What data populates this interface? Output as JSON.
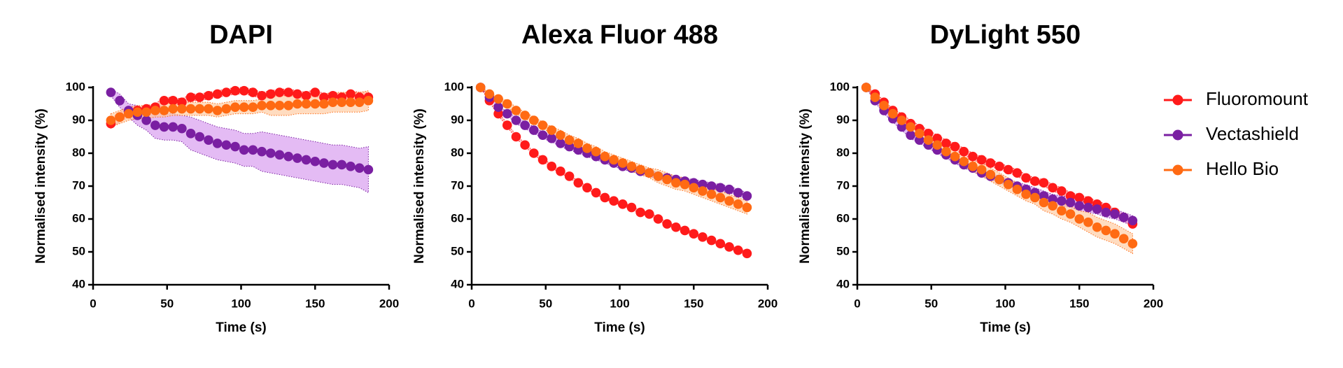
{
  "chart_data": [
    {
      "type": "scatter",
      "title": "DAPI",
      "x_label": "Time (s)",
      "y_label": "Normalised intensity (%)",
      "xlim": [
        0,
        200
      ],
      "xticks": [
        0,
        50,
        100,
        150,
        200
      ],
      "ylim": [
        40,
        100
      ],
      "yticks": [
        40,
        50,
        60,
        70,
        80,
        90,
        100
      ],
      "legend": "right",
      "x": [
        12,
        18,
        24,
        30,
        36,
        42,
        48,
        54,
        60,
        66,
        72,
        78,
        84,
        90,
        96,
        102,
        108,
        114,
        120,
        126,
        132,
        138,
        144,
        150,
        156,
        162,
        168,
        174,
        180,
        186
      ],
      "series": [
        {
          "name": "Fluoromount",
          "color": "#ff1a1a",
          "band_color": "#ffaaaa",
          "values": [
            89,
            91,
            92.5,
            93,
            93.5,
            94,
            96,
            96,
            95.5,
            97,
            97,
            97.5,
            98,
            98.5,
            99,
            99,
            98.5,
            97.5,
            98,
            98.5,
            98.5,
            98,
            97.5,
            98.5,
            97,
            97.5,
            97,
            98,
            97,
            97
          ],
          "error": [
            1.5,
            1.5,
            1.5,
            1,
            1,
            1,
            1,
            1,
            1,
            1,
            1,
            1,
            1,
            1,
            1,
            1,
            1,
            1,
            1,
            1,
            1,
            1,
            1,
            1,
            1,
            1,
            1,
            1,
            1.5,
            1.5
          ]
        },
        {
          "name": "Vectashield",
          "color": "#7a1fa2",
          "band_color": "#d596ee",
          "values": [
            98.5,
            96,
            93,
            91.5,
            90,
            88.5,
            88,
            88,
            87.5,
            86,
            85,
            84,
            83,
            82.5,
            82,
            81,
            81,
            80.5,
            80,
            79.5,
            79,
            78.5,
            78,
            77.5,
            77,
            76.5,
            76.5,
            76,
            75.5,
            75
          ],
          "error": [
            1,
            2,
            2,
            3,
            3,
            4,
            4,
            4,
            4,
            5,
            5,
            5,
            5,
            5,
            5,
            5,
            5,
            6,
            6,
            6,
            6,
            6,
            6,
            6,
            6,
            6,
            6,
            6,
            6,
            7
          ]
        },
        {
          "name": "Hello Bio",
          "color": "#ff6a13",
          "band_color": "#ffc99e",
          "values": [
            90,
            91,
            92,
            92.5,
            92.5,
            93,
            93,
            93.5,
            93.5,
            93.5,
            93.5,
            93.5,
            93,
            93.5,
            94,
            94,
            94,
            94.5,
            94.5,
            94.5,
            94.5,
            95,
            95,
            95,
            95,
            95.5,
            95.5,
            95.5,
            95.5,
            96
          ],
          "error": [
            2,
            2,
            2,
            2,
            2,
            2,
            2,
            2,
            2,
            2,
            2,
            2,
            2,
            2,
            2,
            2,
            2,
            2,
            3,
            3,
            3,
            3,
            3,
            3,
            3,
            3,
            3,
            3,
            3,
            3
          ]
        }
      ]
    },
    {
      "type": "scatter",
      "title": "Alexa Fluor 488",
      "x_label": "Time (s)",
      "y_label": "Normalised intensity (%)",
      "xlim": [
        0,
        200
      ],
      "xticks": [
        0,
        50,
        100,
        150,
        200
      ],
      "ylim": [
        40,
        100
      ],
      "yticks": [
        40,
        50,
        60,
        70,
        80,
        90,
        100
      ],
      "x": [
        6,
        12,
        18,
        24,
        30,
        36,
        42,
        48,
        54,
        60,
        66,
        72,
        78,
        84,
        90,
        96,
        102,
        108,
        114,
        120,
        126,
        132,
        138,
        144,
        150,
        156,
        162,
        168,
        174,
        180,
        186
      ],
      "series": [
        {
          "name": "Fluoromount",
          "color": "#ff1a1a",
          "band_color": "#ffaaaa",
          "values": [
            100,
            96,
            92,
            88.5,
            85,
            82.5,
            80,
            78,
            76,
            74.5,
            73,
            71,
            69.5,
            68,
            66.5,
            65.5,
            64.5,
            63.5,
            62,
            61.5,
            60,
            58.5,
            57.5,
            56.5,
            55.5,
            54.5,
            53.5,
            52.5,
            51.5,
            50.5,
            49.5
          ],
          "error": [
            0,
            0.5,
            0.5,
            0.5,
            0.5,
            0.5,
            0.5,
            0.5,
            0.5,
            0.5,
            0.5,
            0.5,
            0.5,
            0.5,
            0.5,
            0.5,
            0.5,
            0.5,
            0.5,
            0.5,
            0.5,
            0.5,
            0.5,
            0.5,
            0.5,
            0.5,
            0.5,
            0.5,
            0.5,
            0.5,
            0.5
          ]
        },
        {
          "name": "Vectashield",
          "color": "#7a1fa2",
          "band_color": "#d596ee",
          "values": [
            100,
            97,
            94,
            92,
            90,
            88.5,
            87,
            85.5,
            84.5,
            83,
            82,
            81,
            80,
            79,
            78,
            77,
            76,
            75.5,
            74.5,
            74,
            73,
            72.5,
            72,
            71.5,
            71,
            70.5,
            70,
            69.5,
            69,
            68,
            67
          ],
          "error": [
            0,
            0.5,
            0.5,
            0.5,
            1,
            1,
            1,
            1,
            1,
            1,
            1,
            1,
            1,
            1,
            1,
            1,
            1,
            1,
            1,
            1,
            1,
            1,
            1,
            1,
            1,
            1,
            1,
            1,
            1,
            1,
            1
          ]
        },
        {
          "name": "Hello Bio",
          "color": "#ff6a13",
          "band_color": "#ffc99e",
          "values": [
            100,
            98,
            96.5,
            95,
            93,
            91.5,
            90,
            88.5,
            87,
            85.5,
            84,
            83,
            81.5,
            80.5,
            79,
            78,
            77,
            76,
            75,
            74,
            73,
            72,
            71,
            70.5,
            69.5,
            68.5,
            67.5,
            66.5,
            65.5,
            64.5,
            63.5
          ],
          "error": [
            0,
            0.5,
            0.5,
            1,
            1,
            1,
            1,
            1,
            1,
            1.5,
            1.5,
            1.5,
            1.5,
            1.5,
            1.5,
            1.5,
            1.5,
            1.5,
            1.5,
            1.5,
            2,
            2,
            2,
            2,
            2,
            2,
            2,
            2,
            2,
            2,
            2
          ]
        }
      ]
    },
    {
      "type": "scatter",
      "title": "DyLight 550",
      "x_label": "Time (s)",
      "y_label": "Normalised intensity (%)",
      "xlim": [
        0,
        200
      ],
      "xticks": [
        0,
        50,
        100,
        150,
        200
      ],
      "ylim": [
        40,
        100
      ],
      "yticks": [
        40,
        50,
        60,
        70,
        80,
        90,
        100
      ],
      "x": [
        6,
        12,
        18,
        24,
        30,
        36,
        42,
        48,
        54,
        60,
        66,
        72,
        78,
        84,
        90,
        96,
        102,
        108,
        114,
        120,
        126,
        132,
        138,
        144,
        150,
        156,
        162,
        168,
        174,
        180,
        186
      ],
      "series": [
        {
          "name": "Fluoromount",
          "color": "#ff1a1a",
          "band_color": "#ffaaaa",
          "values": [
            100,
            98,
            95.5,
            93,
            91,
            89,
            87.5,
            86,
            84.5,
            83,
            82,
            80.5,
            79,
            78,
            77,
            76,
            75,
            74,
            72.5,
            71.5,
            71,
            69.5,
            68.5,
            67,
            66.5,
            65.5,
            64.5,
            63.5,
            62,
            60.5,
            58.5
          ],
          "error": [
            0,
            0.5,
            0.5,
            0.5,
            1,
            1,
            1,
            1,
            1,
            1,
            1,
            1,
            1,
            1,
            1,
            1,
            1,
            1,
            1,
            1,
            1,
            1,
            1,
            1,
            1,
            1,
            1,
            1,
            1,
            1,
            1
          ]
        },
        {
          "name": "Vectashield",
          "color": "#7a1fa2",
          "band_color": "#d596ee",
          "values": [
            100,
            96,
            93,
            90.5,
            88,
            85.5,
            84,
            82.5,
            81,
            79.5,
            78,
            76.5,
            75.5,
            74,
            73,
            72,
            71,
            70,
            69,
            68,
            67,
            66,
            65.5,
            65,
            64,
            63.5,
            63,
            62,
            61.5,
            60.5,
            59.5
          ],
          "error": [
            0,
            0.5,
            1,
            1,
            1,
            1,
            1,
            1,
            1,
            1,
            1,
            1,
            1,
            1,
            1,
            1,
            1,
            1,
            1.5,
            1.5,
            1.5,
            1.5,
            1.5,
            1.5,
            1.5,
            1.5,
            1.5,
            1.5,
            1.5,
            1.5,
            1.5
          ]
        },
        {
          "name": "Hello Bio",
          "color": "#ff6a13",
          "band_color": "#ffc99e",
          "values": [
            100,
            97,
            94.5,
            92,
            90,
            88,
            86,
            84,
            82.5,
            80.5,
            79,
            77.5,
            76,
            75,
            73.5,
            72,
            70.5,
            69,
            67.5,
            66.5,
            65,
            64,
            62.5,
            61.5,
            60,
            59,
            57.5,
            56.5,
            55.5,
            54,
            52.5
          ],
          "error": [
            0,
            0.5,
            0.5,
            1,
            1,
            1,
            1,
            1,
            1.5,
            1.5,
            1.5,
            1.5,
            1.5,
            2,
            2,
            2,
            2,
            2,
            2,
            2,
            2.5,
            2.5,
            2.5,
            2.5,
            2.5,
            3,
            3,
            3,
            3,
            3,
            3
          ]
        }
      ]
    }
  ]
}
